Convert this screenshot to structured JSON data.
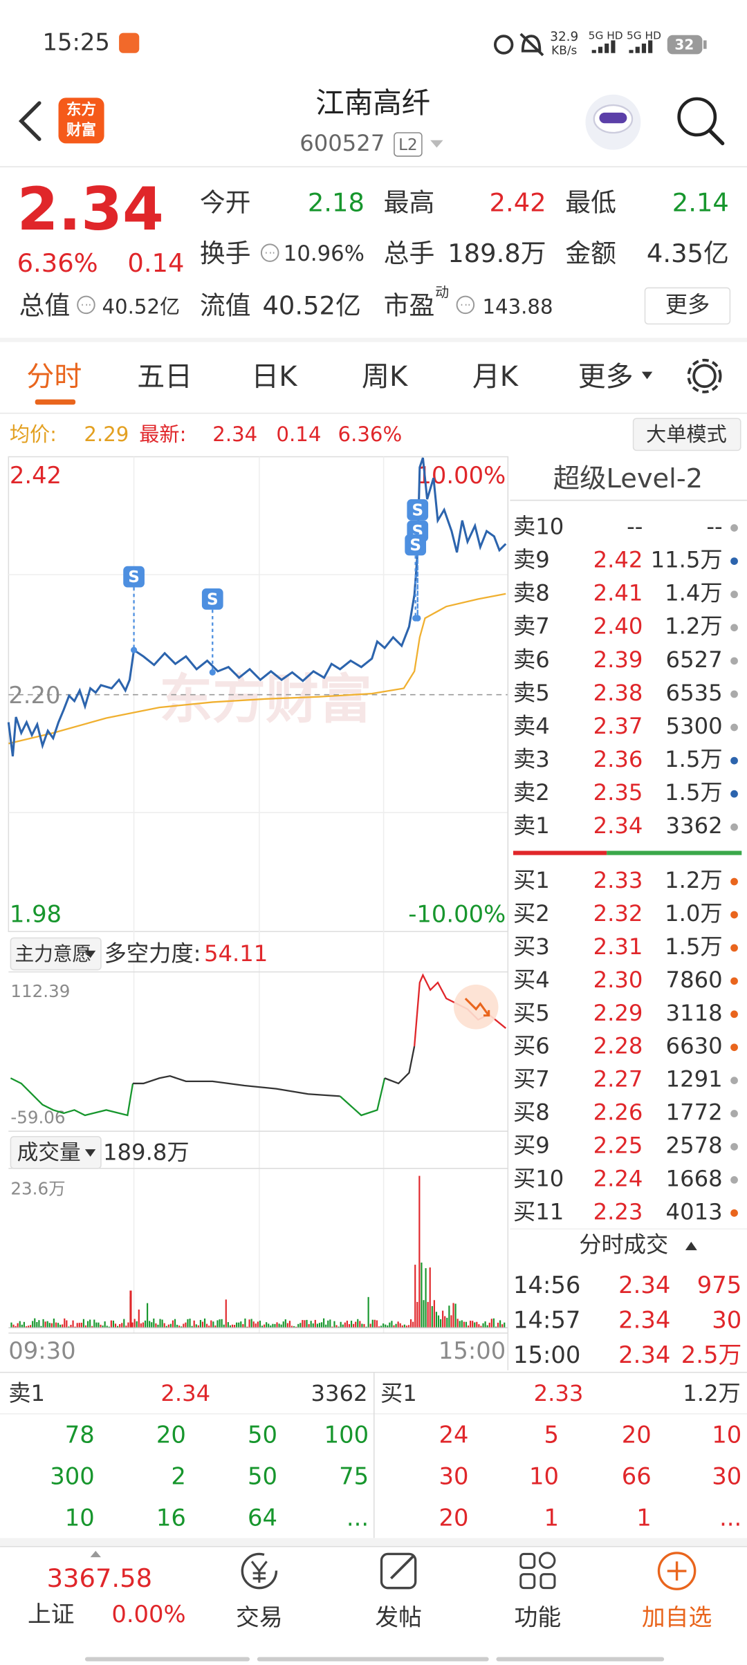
{
  "status_bar": {
    "time": "15:25",
    "network_speed": "32.9",
    "speed_unit": "KB/s",
    "signal_1": "5G HD",
    "signal_2": "5G HD",
    "battery": "32"
  },
  "header": {
    "logo_line1": "东方",
    "logo_line2": "财富",
    "title": "江南高纤",
    "code": "600527",
    "level": "L2"
  },
  "quote": {
    "price": "2.34",
    "change_pct": "6.36%",
    "change": "0.14",
    "open": {
      "label": "今开",
      "value": "2.18"
    },
    "high": {
      "label": "最高",
      "value": "2.42"
    },
    "low": {
      "label": "最低",
      "value": "2.14"
    },
    "turnover": {
      "label": "换手",
      "value": "10.96%"
    },
    "volume": {
      "label": "总手",
      "value": "189.8万"
    },
    "amount": {
      "label": "金额",
      "value": "4.35亿"
    },
    "market_cap": {
      "label": "总值",
      "value": "40.52亿"
    },
    "float_cap": {
      "label": "流值",
      "value": "40.52亿"
    },
    "pe": {
      "label": "市盈",
      "superscript": "动",
      "value": "143.88"
    },
    "more_button": "更多"
  },
  "tabs": [
    "分时",
    "五日",
    "日K",
    "周K",
    "月K",
    "更多"
  ],
  "summary": {
    "avg_label": "均价:",
    "avg": "2.29",
    "latest_label": "最新:",
    "latest": "2.34",
    "change": "0.14",
    "change_pct": "6.36%",
    "big_order_button": "大单模式"
  },
  "price_chart": {
    "high": "2.42",
    "high_pct": "10.00%",
    "prev_close": "2.20",
    "low": "1.98",
    "low_pct": "-10.00%",
    "watermark": "东方财富",
    "markers": [
      "S",
      "S",
      "S",
      "S",
      "S"
    ]
  },
  "indicator": {
    "selector": "主力意愿",
    "label": "多空力度:",
    "value": "54.11",
    "max": "112.39",
    "min": "-59.06"
  },
  "volume_chart": {
    "selector": "成交量",
    "total": "189.8万",
    "max": "23.6万",
    "start_time": "09:30",
    "end_time": "15:00"
  },
  "order_book": {
    "title": "超级Level-2",
    "asks": [
      {
        "label": "卖10",
        "price": "--",
        "volume": "--"
      },
      {
        "label": "卖9",
        "price": "2.42",
        "volume": "11.5万"
      },
      {
        "label": "卖8",
        "price": "2.41",
        "volume": "1.4万"
      },
      {
        "label": "卖7",
        "price": "2.40",
        "volume": "1.2万"
      },
      {
        "label": "卖6",
        "price": "2.39",
        "volume": "6527"
      },
      {
        "label": "卖5",
        "price": "2.38",
        "volume": "6535"
      },
      {
        "label": "卖4",
        "price": "2.37",
        "volume": "5300"
      },
      {
        "label": "卖3",
        "price": "2.36",
        "volume": "1.5万"
      },
      {
        "label": "卖2",
        "price": "2.35",
        "volume": "1.5万"
      },
      {
        "label": "卖1",
        "price": "2.34",
        "volume": "3362"
      }
    ],
    "bids": [
      {
        "label": "买1",
        "price": "2.33",
        "volume": "1.2万"
      },
      {
        "label": "买2",
        "price": "2.32",
        "volume": "1.0万"
      },
      {
        "label": "买3",
        "price": "2.31",
        "volume": "1.5万"
      },
      {
        "label": "买4",
        "price": "2.30",
        "volume": "7860"
      },
      {
        "label": "买5",
        "price": "2.29",
        "volume": "3118"
      },
      {
        "label": "买6",
        "price": "2.28",
        "volume": "6630"
      },
      {
        "label": "买7",
        "price": "2.27",
        "volume": "1291"
      },
      {
        "label": "买8",
        "price": "2.26",
        "volume": "1772"
      },
      {
        "label": "买9",
        "price": "2.25",
        "volume": "2578"
      },
      {
        "label": "买10",
        "price": "2.24",
        "volume": "1668"
      },
      {
        "label": "买11",
        "price": "2.23",
        "volume": "4013"
      }
    ]
  },
  "trades": {
    "title": "分时成交",
    "rows": [
      [
        "14:56",
        "2.34",
        "975"
      ],
      [
        "14:57",
        "2.34",
        "30"
      ],
      [
        "15:00",
        "2.34",
        "2.5万"
      ]
    ]
  },
  "queue": {
    "ask_label": "卖1",
    "ask_price": "2.34",
    "ask_volume": "3362",
    "bid_label": "买1",
    "bid_price": "2.33",
    "bid_volume": "1.2万",
    "ask_orders": [
      [
        "78",
        "20",
        "50",
        "100"
      ],
      [
        "300",
        "2",
        "50",
        "75"
      ],
      [
        "10",
        "16",
        "64",
        "..."
      ]
    ],
    "bid_orders": [
      [
        "24",
        "5",
        "20",
        "10"
      ],
      [
        "30",
        "10",
        "66",
        "30"
      ],
      [
        "20",
        "1",
        "1",
        "..."
      ]
    ]
  },
  "bottom_nav": {
    "index_value": "3367.58",
    "index_name": "上证",
    "index_change": "0.00%",
    "items": [
      "交易",
      "发帖",
      "功能",
      "加自选"
    ]
  }
}
